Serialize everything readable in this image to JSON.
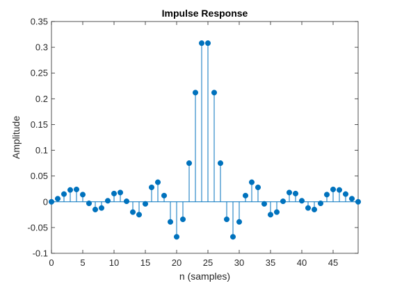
{
  "chart_data": {
    "type": "stem",
    "title": "Impulse Response",
    "xlabel": "n (samples)",
    "ylabel": "Amplitude",
    "xlim": [
      0,
      49
    ],
    "ylim": [
      -0.1,
      0.35
    ],
    "xticks": [
      0,
      5,
      10,
      15,
      20,
      25,
      30,
      35,
      40,
      45
    ],
    "xtick_labels": [
      "0",
      "5",
      "10",
      "15",
      "20",
      "25",
      "30",
      "35",
      "40",
      "45"
    ],
    "yticks": [
      -0.1,
      -0.05,
      0,
      0.05,
      0.1,
      0.15,
      0.2,
      0.25,
      0.3,
      0.35
    ],
    "ytick_labels": [
      "-0.1",
      "-0.05",
      "0",
      "0.05",
      "0.1",
      "0.15",
      "0.2",
      "0.25",
      "0.3",
      "0.35"
    ],
    "grid": false,
    "series": [
      {
        "color": "#0072BD",
        "x": [
          0,
          1,
          2,
          3,
          4,
          5,
          6,
          7,
          8,
          9,
          10,
          11,
          12,
          13,
          14,
          15,
          16,
          17,
          18,
          19,
          20,
          21,
          22,
          23,
          24,
          25,
          26,
          27,
          28,
          29,
          30,
          31,
          32,
          33,
          34,
          35,
          36,
          37,
          38,
          39,
          40,
          41,
          42,
          43,
          44,
          45,
          46,
          47,
          48,
          49
        ],
        "y": [
          0,
          0.006,
          0.015,
          0.023,
          0.024,
          0.014,
          -0.003,
          -0.015,
          -0.012,
          0.002,
          0.016,
          0.018,
          0.001,
          -0.02,
          -0.025,
          -0.004,
          0.028,
          0.038,
          0.012,
          -0.039,
          -0.068,
          -0.034,
          0.075,
          0.212,
          0.308,
          0.308,
          0.212,
          0.075,
          -0.034,
          -0.068,
          -0.039,
          0.012,
          0.038,
          0.028,
          -0.004,
          -0.025,
          -0.02,
          0.001,
          0.018,
          0.016,
          0.002,
          -0.012,
          -0.015,
          -0.003,
          0.014,
          0.024,
          0.023,
          0.015,
          0.006,
          0
        ]
      }
    ]
  }
}
